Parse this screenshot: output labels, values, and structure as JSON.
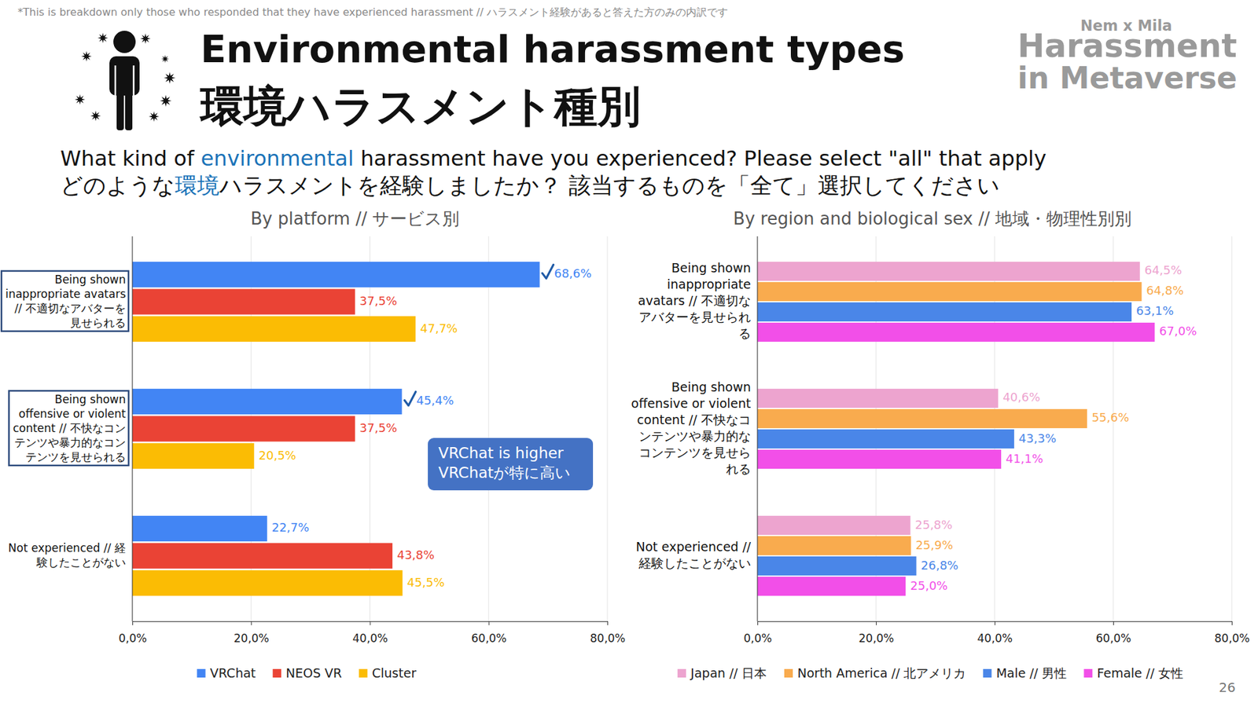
{
  "header": {
    "note": "*This is breakdown only those who responded that they have experienced harassment // ハラスメント経験があると答えた方のみの内訳です",
    "title": "Environmental harassment types",
    "title_ja": "環境ハラスメント種別",
    "logo": [
      "Nem x Mila",
      "Harassment",
      "in Metaverse"
    ],
    "question": [
      [
        {
          "text": "What kind of "
        },
        {
          "text": "environmental",
          "emphasis": true
        },
        {
          "text": " harassment have you experienced? Please select \"all\" that apply"
        }
      ],
      [
        {
          "text": "どのような"
        },
        {
          "text": "環境",
          "emphasis": true
        },
        {
          "text": "ハラスメントを経験しましたか？ 該当するものを「全て」選択してください"
        }
      ]
    ],
    "page": "26"
  },
  "chart_data": [
    {
      "type": "bar",
      "orientation": "horizontal",
      "title": "By platform // サービス別",
      "categories": [
        "Being shown\ninappropriate avatars\n// 不適切なアバターを\n見せられる",
        "Being shown\noffensive or violent\ncontent // 不快なコン\nテンツや暴力的なコン\nテンツを見せられる",
        "Not experienced // 経\n験したことがない"
      ],
      "series": [
        {
          "name": "VRChat",
          "color": "#4285f4",
          "values": [
            68.6,
            45.4,
            22.7
          ],
          "value_labels": [
            "68,6%",
            "45,4%",
            "22,7%"
          ]
        },
        {
          "name": "NEOS VR",
          "color": "#ea4335",
          "values": [
            37.5,
            37.5,
            43.8
          ],
          "value_labels": [
            "37,5%",
            "37,5%",
            "43,8%"
          ]
        },
        {
          "name": "Cluster",
          "color": "#fbbc04",
          "values": [
            47.7,
            20.5,
            45.5
          ],
          "value_labels": [
            "47,7%",
            "20,5%",
            "45,5%"
          ]
        }
      ],
      "xlim": [
        0,
        80
      ],
      "xticks": [
        {
          "value": 0,
          "label": "0,0%"
        },
        {
          "value": 20,
          "label": "20,0%"
        },
        {
          "value": 40,
          "label": "40,0%"
        },
        {
          "value": 60,
          "label": "60,0%"
        },
        {
          "value": 80,
          "label": "80,0%"
        }
      ],
      "grid": true,
      "legend": "bottom",
      "data_labels": true,
      "annotations": [
        "VRChat is higher",
        "VRChatが特に高い"
      ]
    },
    {
      "type": "bar",
      "orientation": "horizontal",
      "title": "By region and biological sex // 地域・物理性別別",
      "categories": [
        "Being shown\ninappropriate\navatars // 不適切な\nアバターを見せられ\nる",
        "Being shown\noffensive or violent\ncontent // 不快なコ\nンテンツや暴力的な\nコンテンツを見せら\nれる",
        "Not experienced //\n経験したことがない"
      ],
      "series": [
        {
          "name": "Japan // 日本",
          "color": "#eda4cf",
          "values": [
            64.5,
            40.6,
            25.8
          ],
          "value_labels": [
            "64,5%",
            "40,6%",
            "25,8%"
          ]
        },
        {
          "name": "North America // 北アメリカ",
          "color": "#f9ab4e",
          "values": [
            64.8,
            55.6,
            25.9
          ],
          "value_labels": [
            "64,8%",
            "55,6%",
            "25,9%"
          ]
        },
        {
          "name": "Male // 男性",
          "color": "#4a86e8",
          "values": [
            63.1,
            43.3,
            26.8
          ],
          "value_labels": [
            "63,1%",
            "43,3%",
            "26,8%"
          ]
        },
        {
          "name": "Female // 女性",
          "color": "#f24fe8",
          "values": [
            67.0,
            41.1,
            25.0
          ],
          "value_labels": [
            "67,0%",
            "41,1%",
            "25,0%"
          ]
        }
      ],
      "xlim": [
        0,
        80
      ],
      "xticks": [
        {
          "value": 0,
          "label": "0,0%"
        },
        {
          "value": 20,
          "label": "20,0%"
        },
        {
          "value": 40,
          "label": "40,0%"
        },
        {
          "value": 60,
          "label": "60,0%"
        },
        {
          "value": 80,
          "label": "80,0%"
        }
      ],
      "grid": true,
      "legend": "bottom",
      "data_labels": true
    }
  ]
}
